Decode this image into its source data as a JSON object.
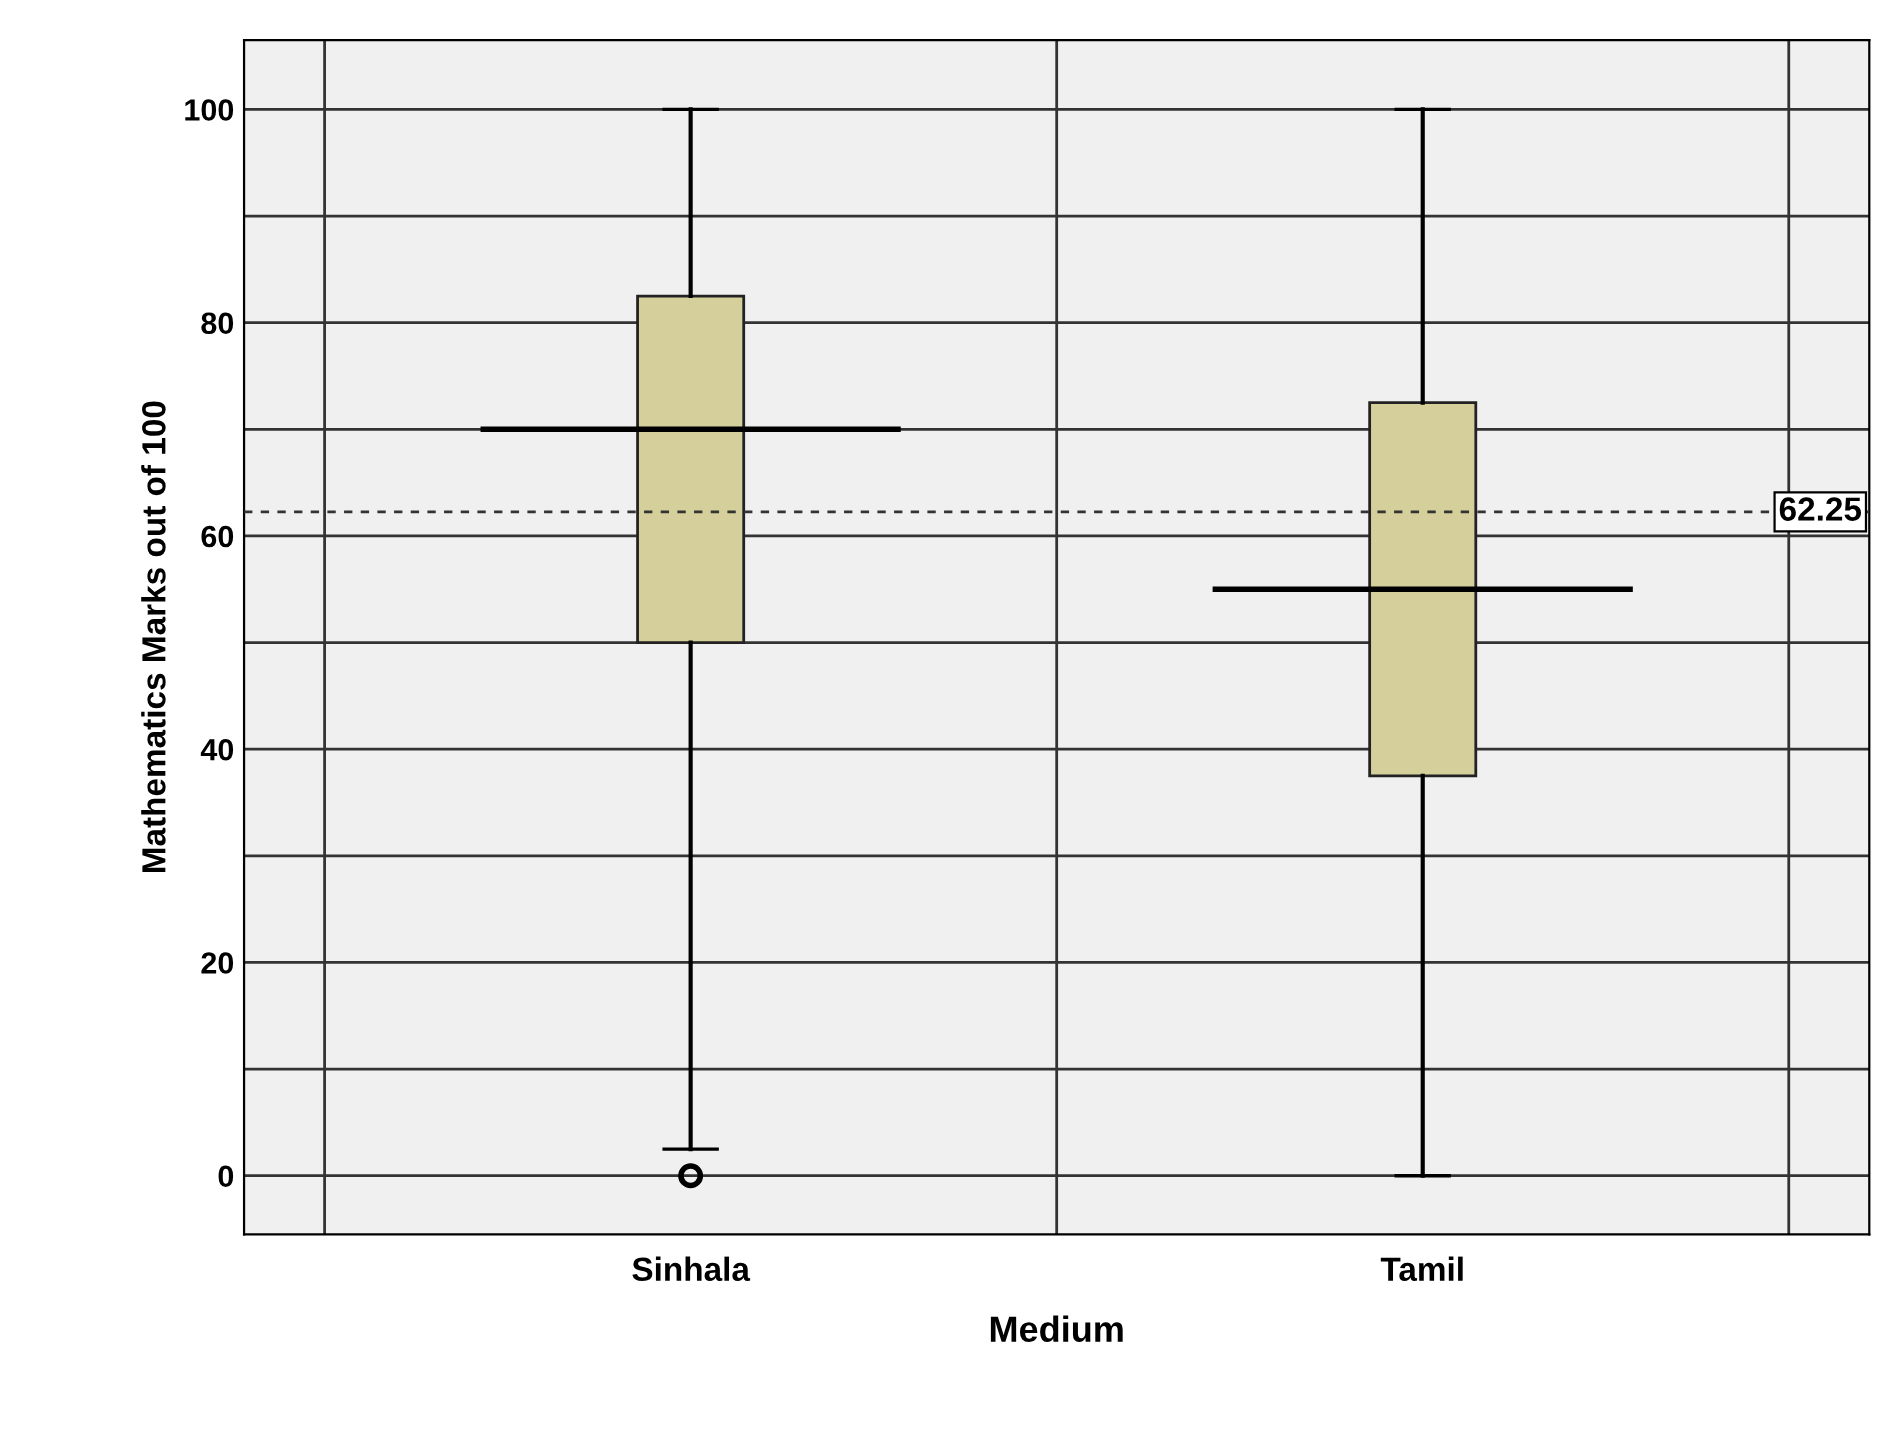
{
  "chart_data": {
    "type": "box",
    "categories": [
      "Sinhala",
      "Tamil"
    ],
    "xlabel": "Medium",
    "ylabel": "Mathematics Marks out of 100",
    "boxes": [
      {
        "low": 2.5,
        "q1": 50,
        "median": 70,
        "q3": 82.5,
        "high": 100,
        "outliers": [
          0
        ]
      },
      {
        "low": 0,
        "q1": 37.5,
        "median": 55,
        "q3": 72.5,
        "high": 100
      }
    ],
    "color": "#d4cf9b",
    "ylim": [
      -5.5,
      106.5
    ],
    "yticks": [
      0,
      {
        "value": 10,
        "label": null
      },
      20,
      {
        "value": 30,
        "label": null
      },
      40,
      {
        "value": 50,
        "label": null
      },
      60,
      {
        "value": 70,
        "label": null
      },
      80,
      {
        "value": 90,
        "label": null
      },
      100
    ],
    "ref_lines": [
      {
        "axis": "y",
        "value": 62.25,
        "label": "62.25",
        "line_style": "dashed"
      }
    ],
    "grid": true
  }
}
